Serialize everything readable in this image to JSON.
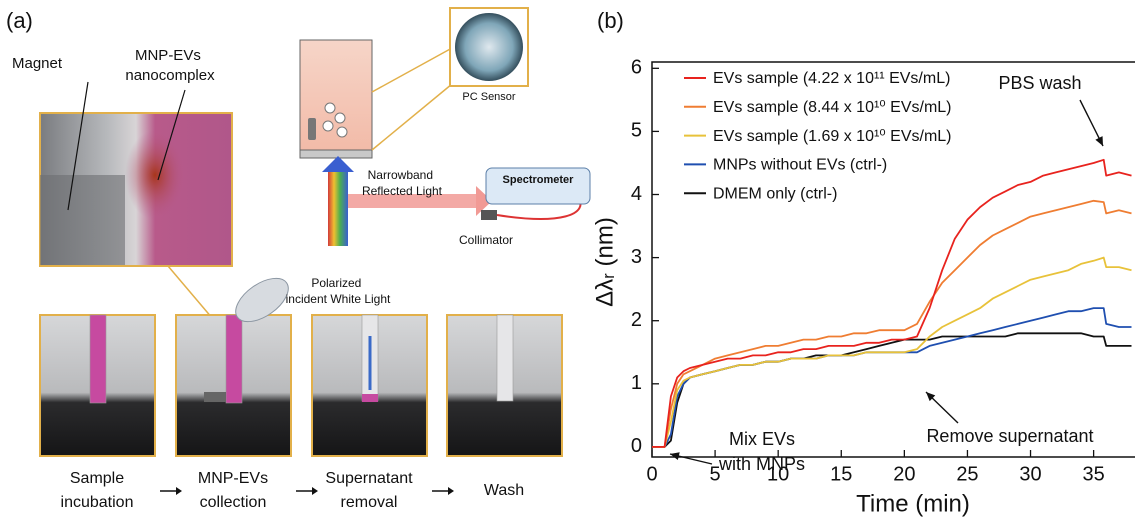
{
  "panel_labels": [
    "(a)",
    "(b)"
  ],
  "panel_a": {
    "magnet": "Magnet",
    "nanocomplex": [
      "MNP-EVs",
      "nanocomplex"
    ],
    "pc_sensor": "PC Sensor",
    "spectrometer": "Spectrometer",
    "reflected": [
      "Narrowband",
      "Reflected Light"
    ],
    "collimator": "Collimator",
    "incident": [
      "Polarized",
      "incident White Light"
    ],
    "steps": [
      [
        "Sample",
        "incubation"
      ],
      [
        "MNP-EVs",
        "collection"
      ],
      [
        "Supernatant",
        "removal"
      ],
      [
        "Wash"
      ]
    ]
  },
  "chart_data": {
    "type": "line",
    "x_label": "Time (min)",
    "y_label": "Δλᵣ (nm)",
    "x": [
      0,
      1,
      1.5,
      2,
      2.5,
      3,
      4,
      5,
      6,
      7,
      8,
      9,
      10,
      11,
      12,
      13,
      14,
      15,
      16,
      17,
      18,
      19,
      20,
      21,
      22,
      23,
      24,
      25,
      26,
      27,
      28,
      29,
      30,
      31,
      32,
      33,
      34,
      35,
      35.8,
      36,
      37,
      38
    ],
    "series": [
      {
        "name": "EVs sample (4.22 x 10¹¹ EVs/mL)",
        "color": "#e8231e",
        "values": [
          0,
          0,
          0.8,
          1.1,
          1.2,
          1.25,
          1.3,
          1.35,
          1.4,
          1.4,
          1.45,
          1.45,
          1.5,
          1.5,
          1.55,
          1.55,
          1.6,
          1.6,
          1.6,
          1.65,
          1.65,
          1.7,
          1.7,
          1.75,
          2.2,
          2.8,
          3.3,
          3.6,
          3.8,
          3.95,
          4.05,
          4.15,
          4.2,
          4.3,
          4.35,
          4.4,
          4.45,
          4.5,
          4.55,
          4.3,
          4.35,
          4.3
        ]
      },
      {
        "name": "EVs sample (8.44 x 10¹⁰ EVs/mL)",
        "color": "#ef7d32",
        "values": [
          0,
          0,
          0.6,
          1.0,
          1.15,
          1.2,
          1.3,
          1.4,
          1.45,
          1.5,
          1.55,
          1.6,
          1.6,
          1.65,
          1.7,
          1.7,
          1.75,
          1.75,
          1.8,
          1.8,
          1.85,
          1.85,
          1.85,
          1.95,
          2.3,
          2.6,
          2.8,
          3.0,
          3.2,
          3.35,
          3.45,
          3.55,
          3.65,
          3.7,
          3.75,
          3.8,
          3.85,
          3.9,
          3.88,
          3.7,
          3.75,
          3.7
        ]
      },
      {
        "name": "EVs sample (1.69 x 10¹⁰ EVs/mL)",
        "color": "#e8c23a",
        "values": [
          0,
          0,
          0.4,
          0.9,
          1.05,
          1.1,
          1.15,
          1.2,
          1.25,
          1.3,
          1.3,
          1.35,
          1.35,
          1.4,
          1.4,
          1.4,
          1.45,
          1.45,
          1.45,
          1.5,
          1.5,
          1.5,
          1.5,
          1.55,
          1.75,
          1.9,
          2.0,
          2.1,
          2.2,
          2.35,
          2.45,
          2.55,
          2.65,
          2.7,
          2.75,
          2.8,
          2.9,
          2.95,
          3.0,
          2.85,
          2.85,
          2.8
        ]
      },
      {
        "name": "MNPs without EVs (ctrl-)",
        "color": "#1f4fb0",
        "values": [
          0,
          0,
          0.2,
          0.8,
          1.0,
          1.1,
          1.15,
          1.2,
          1.25,
          1.3,
          1.3,
          1.35,
          1.35,
          1.4,
          1.4,
          1.4,
          1.45,
          1.45,
          1.45,
          1.5,
          1.5,
          1.5,
          1.5,
          1.5,
          1.6,
          1.65,
          1.7,
          1.75,
          1.8,
          1.85,
          1.9,
          1.95,
          2.0,
          2.05,
          2.1,
          2.15,
          2.15,
          2.2,
          2.2,
          1.95,
          1.9,
          1.9
        ]
      },
      {
        "name": "DMEM only (ctrl-)",
        "color": "#111111",
        "values": [
          0,
          0,
          0.1,
          0.7,
          1.0,
          1.1,
          1.15,
          1.2,
          1.25,
          1.3,
          1.3,
          1.35,
          1.35,
          1.4,
          1.4,
          1.45,
          1.45,
          1.45,
          1.5,
          1.55,
          1.6,
          1.65,
          1.7,
          1.7,
          1.7,
          1.75,
          1.75,
          1.75,
          1.75,
          1.75,
          1.75,
          1.8,
          1.8,
          1.8,
          1.8,
          1.8,
          1.8,
          1.75,
          1.75,
          1.6,
          1.6,
          1.6
        ]
      }
    ],
    "xlim": [
      0,
      38.2
    ],
    "xticks": [
      0,
      5,
      10,
      15,
      20,
      25,
      30,
      35
    ],
    "ylim": [
      -0.16,
      6.1
    ],
    "yticks": [
      0,
      1,
      2,
      3,
      4,
      5,
      6
    ],
    "legend": "upper left",
    "annotations": [
      {
        "lines": [
          "PBS wash"
        ]
      },
      {
        "lines": [
          "Remove supernatant"
        ]
      },
      {
        "lines": [
          "Mix EVs",
          "with MNPs"
        ]
      }
    ]
  }
}
